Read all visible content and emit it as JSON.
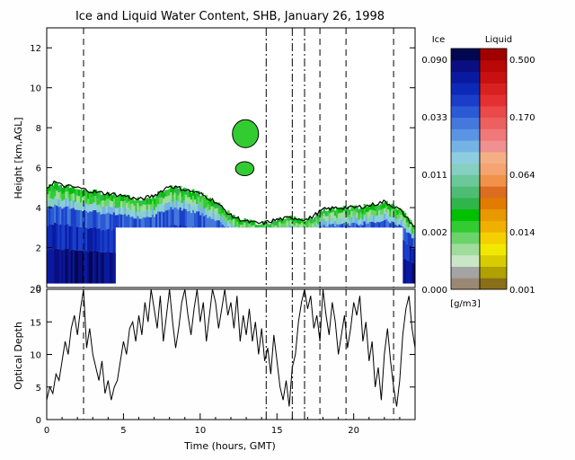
{
  "chart_data": [
    {
      "type": "heatmap",
      "title": "Ice and Liquid Water Content, SHB, January 26, 1998",
      "ylabel": "Height [km,AGL]",
      "xlim": [
        0,
        24
      ],
      "ylim": [
        0,
        13
      ],
      "y_ticks": [
        0,
        2,
        4,
        6,
        8,
        10,
        12
      ],
      "cloud_top_km": [
        [
          0.0,
          5.0
        ],
        [
          0.5,
          5.3
        ],
        [
          1.0,
          5.1
        ],
        [
          2.0,
          5.0
        ],
        [
          3.0,
          4.8
        ],
        [
          4.0,
          4.7
        ],
        [
          5.0,
          4.6
        ],
        [
          6.0,
          4.4
        ],
        [
          7.0,
          4.6
        ],
        [
          8.0,
          5.1
        ],
        [
          9.0,
          4.9
        ],
        [
          10.0,
          4.7
        ],
        [
          11.0,
          4.3
        ],
        [
          12.0,
          3.6
        ],
        [
          13.0,
          3.3
        ],
        [
          14.0,
          3.2
        ],
        [
          15.0,
          3.4
        ],
        [
          16.0,
          3.5
        ],
        [
          17.0,
          3.4
        ],
        [
          18.0,
          3.9
        ],
        [
          19.0,
          4.0
        ],
        [
          20.0,
          4.0
        ],
        [
          21.0,
          4.1
        ],
        [
          22.0,
          4.3
        ],
        [
          23.0,
          3.9
        ],
        [
          24.0,
          3.0
        ]
      ],
      "cloud_base_km": 0.2,
      "no_data_block": {
        "x": [
          4.5,
          23.2
        ],
        "y_top": 3.0
      },
      "upper_cloud": [
        {
          "x": [
            12.1,
            13.8
          ],
          "y": [
            7.0,
            8.4
          ]
        },
        {
          "x": [
            12.3,
            13.5
          ],
          "y": [
            5.6,
            6.3
          ]
        }
      ],
      "colorbar": {
        "ice_title": "Ice",
        "liquid_title": "Liquid",
        "ice_ticks": [
          "0.090",
          "0.033",
          "0.011",
          "0.002",
          "0.000"
        ],
        "liquid_ticks": [
          "0.500",
          "0.170",
          "0.064",
          "0.014",
          "0.001"
        ],
        "units": "[g/m3]",
        "ice_colors": [
          "#9b8874",
          "#a4a4a4",
          "#c9e7c6",
          "#a0dc9c",
          "#6ad46a",
          "#32cc32",
          "#00c000",
          "#2fb54a",
          "#4ebd74",
          "#6cc89a",
          "#86d0c2",
          "#8ecde0",
          "#74b3e4",
          "#5a95e4",
          "#4478dc",
          "#2a5ad4",
          "#1a3ec8",
          "#0c2ab8",
          "#0a1aa0",
          "#0a0e80",
          "#020850"
        ],
        "liquid_colors": [
          "#8a6e18",
          "#b0a000",
          "#d8cc00",
          "#f0e800",
          "#f4d000",
          "#f0b000",
          "#e89800",
          "#e27c00",
          "#dc6c20",
          "#f0924a",
          "#f4a46e",
          "#f4b084",
          "#f09090",
          "#f07878",
          "#ec6060",
          "#ea4a4a",
          "#e43030",
          "#d82020",
          "#c81010",
          "#b80808",
          "#a00000"
        ]
      }
    },
    {
      "type": "line",
      "ylabel": "Optical Depth",
      "xlabel": "Time (hours, GMT)",
      "xlim": [
        0,
        24
      ],
      "ylim": [
        0,
        20
      ],
      "x_ticks": [
        0,
        5,
        10,
        15,
        20
      ],
      "y_ticks": [
        0,
        5,
        10,
        15,
        20
      ],
      "x": [
        0.0,
        0.2,
        0.4,
        0.6,
        0.8,
        1.0,
        1.2,
        1.4,
        1.6,
        1.8,
        2.0,
        2.2,
        2.4,
        2.6,
        2.8,
        3.0,
        3.2,
        3.4,
        3.6,
        3.8,
        4.0,
        4.2,
        4.4,
        4.6,
        4.8,
        5.0,
        5.2,
        5.4,
        5.6,
        5.8,
        6.0,
        6.2,
        6.4,
        6.6,
        6.8,
        7.0,
        7.2,
        7.4,
        7.6,
        7.8,
        8.0,
        8.2,
        8.4,
        8.6,
        8.8,
        9.0,
        9.2,
        9.4,
        9.6,
        9.8,
        10.0,
        10.2,
        10.4,
        10.6,
        10.8,
        11.0,
        11.2,
        11.4,
        11.6,
        11.8,
        12.0,
        12.2,
        12.4,
        12.6,
        12.8,
        13.0,
        13.2,
        13.4,
        13.6,
        13.8,
        14.0,
        14.2,
        14.4,
        14.6,
        14.8,
        15.0,
        15.2,
        15.4,
        15.6,
        15.8,
        16.0,
        16.2,
        16.4,
        16.6,
        16.8,
        17.0,
        17.2,
        17.4,
        17.6,
        17.8,
        18.0,
        18.2,
        18.4,
        18.6,
        18.8,
        19.0,
        19.2,
        19.4,
        19.6,
        19.8,
        20.0,
        20.2,
        20.4,
        20.6,
        20.8,
        21.0,
        21.2,
        21.4,
        21.6,
        21.8,
        22.0,
        22.2,
        22.4,
        22.6,
        22.8,
        23.0,
        23.2,
        23.4,
        23.6,
        23.8,
        24.0
      ],
      "values": [
        3,
        5,
        4,
        7,
        6,
        9,
        12,
        10,
        14,
        16,
        13,
        17,
        20,
        11,
        14,
        10,
        8,
        6,
        9,
        4,
        6,
        3,
        5,
        6,
        9,
        12,
        10,
        14,
        15,
        12,
        16,
        13,
        18,
        15,
        20,
        17,
        14,
        19,
        12,
        16,
        20,
        15,
        11,
        14,
        18,
        20,
        16,
        13,
        17,
        20,
        15,
        18,
        12,
        16,
        20,
        18,
        14,
        17,
        20,
        16,
        18,
        14,
        19,
        12,
        16,
        13,
        17,
        12,
        15,
        10,
        14,
        9,
        11,
        7,
        13,
        9,
        5,
        3,
        6,
        2,
        8,
        10,
        15,
        18,
        20,
        17,
        19,
        14,
        16,
        12,
        20,
        16,
        13,
        18,
        15,
        10,
        13,
        16,
        11,
        14,
        18,
        16,
        19,
        12,
        15,
        9,
        12,
        5,
        8,
        3,
        10,
        14,
        9,
        5,
        2,
        6,
        13,
        17,
        19,
        14,
        11
      ]
    }
  ],
  "markers": {
    "dashed_hours": [
      2.4,
      17.8,
      19.5,
      22.6
    ],
    "dashdot_hours": [
      14.3,
      16.0,
      16.8
    ]
  }
}
